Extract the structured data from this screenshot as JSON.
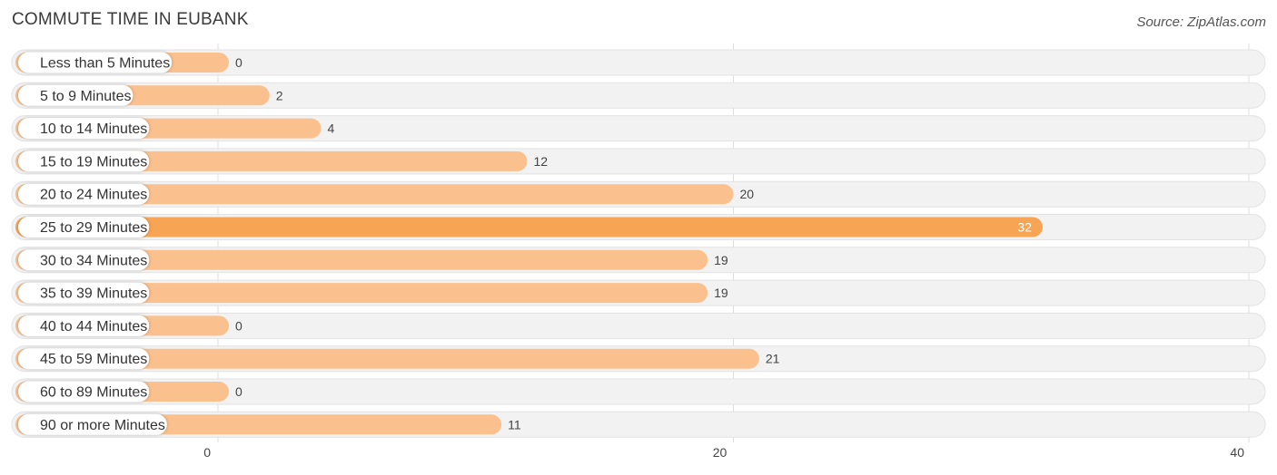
{
  "chart_data": {
    "type": "bar",
    "orientation": "horizontal",
    "title": "COMMUTE TIME IN EUBANK",
    "source": "Source: ZipAtlas.com",
    "categories": [
      "Less than 5 Minutes",
      "5 to 9 Minutes",
      "10 to 14 Minutes",
      "15 to 19 Minutes",
      "20 to 24 Minutes",
      "25 to 29 Minutes",
      "30 to 34 Minutes",
      "35 to 39 Minutes",
      "40 to 44 Minutes",
      "45 to 59 Minutes",
      "60 to 89 Minutes",
      "90 or more Minutes"
    ],
    "values": [
      0,
      2,
      4,
      12,
      20,
      32,
      19,
      19,
      0,
      21,
      0,
      11
    ],
    "xlim": [
      0,
      40
    ],
    "xticks": [
      0,
      20,
      40
    ],
    "xlabel": "",
    "ylabel": "",
    "grid": true,
    "colors": {
      "bar": "#fac08e",
      "bar_highlight": "#f7a454",
      "track": "#f2f2f2",
      "grid": "#dddddd"
    }
  }
}
